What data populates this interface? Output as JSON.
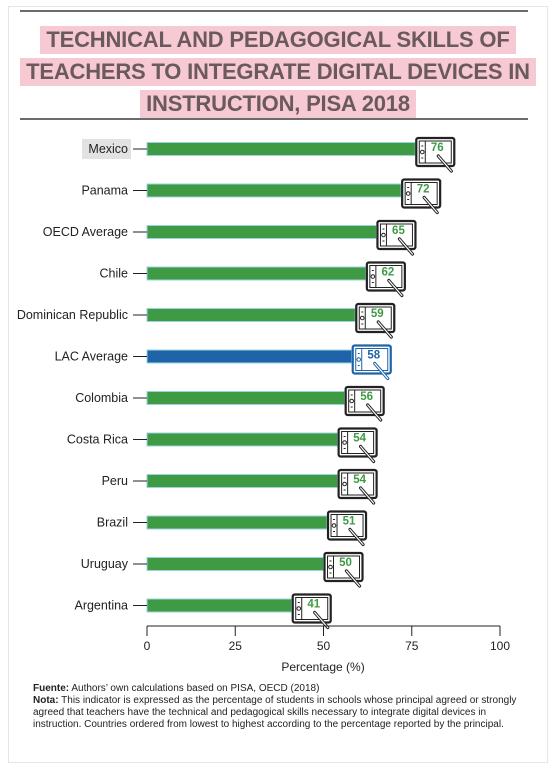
{
  "title": {
    "line1": "TECHNICAL AND PEDAGOGICAL SKILLS OF",
    "line2": "TEACHERS TO INTEGRATE DIGITAL DEVICES IN",
    "line3": "INSTRUCTION, PISA 2018"
  },
  "colors": {
    "bar": "#3f9b43",
    "bar_highlight": "#1f63a8",
    "title_bg": "#f6c9d3",
    "title_text": "#6b5a5d"
  },
  "icon": "tablet-with-stylus-icon",
  "chart_data": {
    "type": "bar",
    "orientation": "horizontal",
    "categories": [
      "Mexico",
      "Panama",
      "OECD Average",
      "Chile",
      "Dominican Republic",
      "LAC Average",
      "Colombia",
      "Costa Rica",
      "Peru",
      "Brazil",
      "Uruguay",
      "Argentina"
    ],
    "values": [
      76,
      72,
      65,
      62,
      59,
      58,
      56,
      54,
      54,
      51,
      50,
      41
    ],
    "highlight": "LAC Average",
    "xlabel": "Percentage (%)",
    "xlim": [
      0,
      100
    ],
    "xticks": [
      0,
      25,
      50,
      75,
      100
    ],
    "grid": false,
    "legend": "none"
  },
  "notes": {
    "source_label": "Fuente:",
    "source_text": " Authors’ own calculations based on PISA, OECD (2018)",
    "note_label": "Nota:",
    "note_text": " This indicator is expressed as the percentage of students in schools whose principal agreed or strongly agreed that teachers have the technical and pedagogical skills necessary to integrate digital devices in instruction. Countries ordered from lowest to highest according to the percentage reported by the principal."
  }
}
